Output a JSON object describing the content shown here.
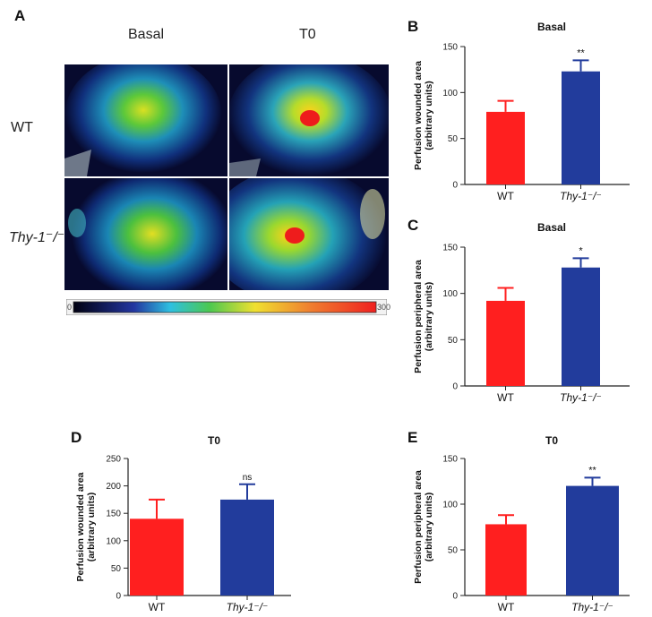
{
  "panel_a": {
    "letter": "A",
    "col_labels": [
      "Basal",
      "T0"
    ],
    "row_labels": [
      "WT",
      "Thy-1⁻/⁻"
    ],
    "colorbar": {
      "min_label": "0",
      "max_label": "300"
    }
  },
  "colors": {
    "wt": "#ff1f1f",
    "thy": "#223c9c",
    "axis": "#222222"
  },
  "chart_data": [
    {
      "id": "B",
      "letter": "B",
      "type": "bar",
      "title": "Basal",
      "ylabel": "Perfusion wounded area\n(arbitrary units)",
      "categories": [
        "WT",
        "Thy-1⁻/⁻"
      ],
      "values": [
        79,
        123
      ],
      "errors": [
        12,
        12
      ],
      "ylim": [
        0,
        150
      ],
      "yticks": [
        0,
        50,
        100,
        150
      ],
      "significance": "**"
    },
    {
      "id": "C",
      "letter": "C",
      "type": "bar",
      "title": "Basal",
      "ylabel": "Perfusion peripheral area\n(arbitrary units)",
      "categories": [
        "WT",
        "Thy-1⁻/⁻"
      ],
      "values": [
        92,
        128
      ],
      "errors": [
        14,
        10
      ],
      "ylim": [
        0,
        150
      ],
      "yticks": [
        0,
        50,
        100,
        150
      ],
      "significance": "*"
    },
    {
      "id": "D",
      "letter": "D",
      "type": "bar",
      "title": "T0",
      "ylabel": "Perfusion wounded area\n(arbitrary units)",
      "categories": [
        "WT",
        "Thy-1⁻/⁻"
      ],
      "values": [
        140,
        175
      ],
      "errors": [
        35,
        28
      ],
      "ylim": [
        0,
        250
      ],
      "yticks": [
        0,
        50,
        100,
        150,
        200,
        250
      ],
      "significance": "ns"
    },
    {
      "id": "E",
      "letter": "E",
      "type": "bar",
      "title": "T0",
      "ylabel": "Perfusion peripheral area\n(arbitrary units)",
      "categories": [
        "WT",
        "Thy-1⁻/⁻"
      ],
      "values": [
        78,
        120
      ],
      "errors": [
        10,
        9
      ],
      "ylim": [
        0,
        150
      ],
      "yticks": [
        0,
        50,
        100,
        150
      ],
      "significance": "**"
    }
  ]
}
